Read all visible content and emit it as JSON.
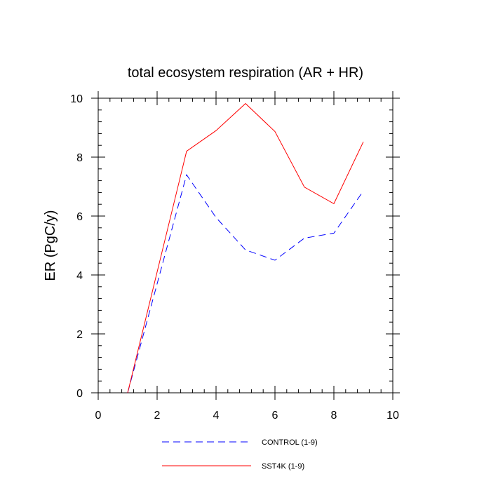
{
  "chart_data": {
    "type": "line",
    "title": "total ecosystem respiration (AR + HR)",
    "xlabel": "",
    "ylabel": "ER  (PgC/y)",
    "xlim": [
      0,
      10
    ],
    "ylim": [
      0,
      10
    ],
    "xticks": [
      0,
      2,
      4,
      6,
      8,
      10
    ],
    "yticks": [
      0,
      2,
      4,
      6,
      8,
      10
    ],
    "minor_tick_step": 0.4,
    "grid": false,
    "legend_position": "bottom",
    "x": [
      1,
      2,
      3,
      4,
      5,
      6,
      7,
      8,
      9
    ],
    "series": [
      {
        "name": "CONTROL (1-9)",
        "values": [
          0,
          3.7,
          7.4,
          5.95,
          4.85,
          4.5,
          5.25,
          5.42,
          6.85
        ],
        "color": "#0000ff",
        "dash": "dashed"
      },
      {
        "name": "SST4K (1-9)",
        "values": [
          0,
          4.1,
          8.2,
          8.9,
          9.82,
          8.87,
          6.98,
          6.42,
          8.52
        ],
        "color": "#ff0000",
        "dash": "solid"
      }
    ]
  }
}
